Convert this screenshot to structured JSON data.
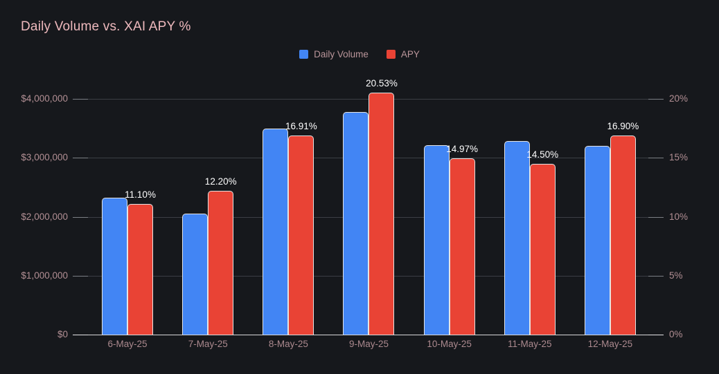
{
  "title": "Daily Volume vs. XAI APY %",
  "colors": {
    "background": "#16181c",
    "title_text": "#eeb9bd",
    "axis_text": "#b28f94",
    "value_label_text": "#ffffff",
    "gridline": "#3c3f45",
    "zero_line": "#d9d9db",
    "volume_bar": "#4285f4",
    "apy_bar": "#e94335",
    "bar_border": "#e4e4e4"
  },
  "legend": [
    {
      "label": "Daily Volume",
      "color": "#4285f4"
    },
    {
      "label": "APY",
      "color": "#e94335"
    }
  ],
  "chart_data": {
    "type": "bar",
    "title": "Daily Volume vs. XAI APY %",
    "categories": [
      "6-May-25",
      "7-May-25",
      "8-May-25",
      "9-May-25",
      "10-May-25",
      "11-May-25",
      "12-May-25"
    ],
    "series": [
      {
        "name": "Daily Volume",
        "axis": "left",
        "color": "#4285f4",
        "values": [
          2320000,
          2050000,
          3500000,
          3780000,
          3220000,
          3280000,
          3200000
        ]
      },
      {
        "name": "APY",
        "axis": "right",
        "color": "#e94335",
        "values": [
          11.1,
          12.2,
          16.91,
          20.53,
          14.97,
          14.5,
          16.9
        ],
        "labels": [
          "11.10%",
          "12.20%",
          "16.91%",
          "20.53%",
          "14.97%",
          "14.50%",
          "16.90%"
        ]
      }
    ],
    "left_axis": {
      "ticks": [
        "$4,000,000",
        "$3,000,000",
        "$2,000,000",
        "$1,000,000",
        "$0"
      ],
      "min": 0,
      "max": 4000000
    },
    "right_axis": {
      "ticks": [
        "20%",
        "15%",
        "10%",
        "5%",
        "0%"
      ],
      "min": 0,
      "max": 20
    },
    "legend_position": "top-center",
    "grid": "horizontal"
  }
}
